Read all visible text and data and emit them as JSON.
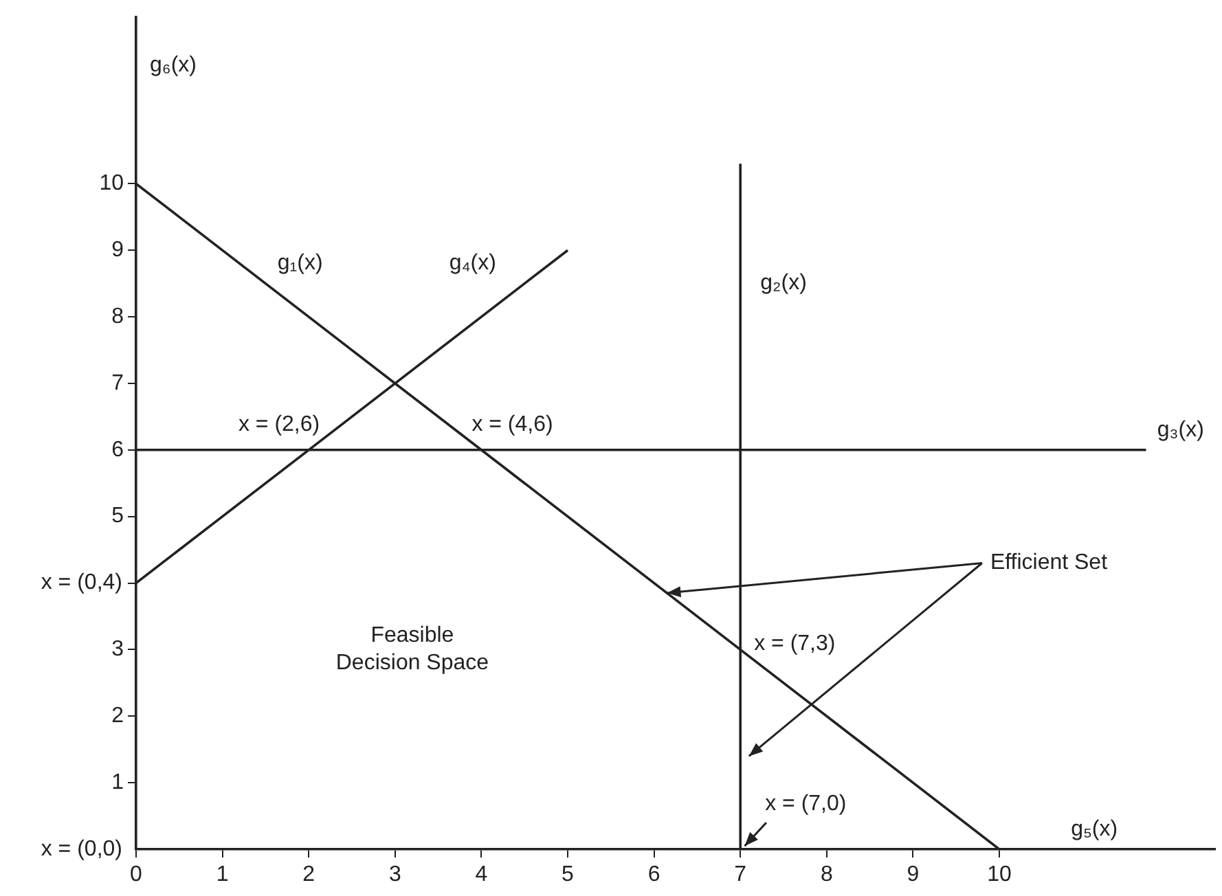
{
  "chart_data": {
    "type": "line",
    "ylabel": "g₆(x)",
    "xlim": [
      0,
      12.5
    ],
    "xticks": [
      0,
      1,
      2,
      3,
      4,
      5,
      6,
      7,
      8,
      9,
      10
    ],
    "ylim": [
      0,
      12.5
    ],
    "yticks": [
      1,
      2,
      3,
      {
        "value": 4,
        "label": null
      },
      5,
      6,
      7,
      8,
      9,
      10
    ],
    "grid": false,
    "legend": false,
    "marker": "none",
    "line_style": "solid",
    "series": [
      {
        "color": "#222222",
        "x": [
          0,
          10
        ],
        "values": [
          10,
          0
        ]
      },
      {
        "color": "#222222",
        "x": [
          7,
          7
        ],
        "values": [
          0,
          10.3
        ]
      },
      {
        "color": "#222222",
        "x": [
          0,
          11.7
        ],
        "values": [
          6,
          6
        ]
      },
      {
        "color": "#222222",
        "x": [
          0,
          5
        ],
        "values": [
          4,
          9
        ]
      }
    ],
    "annotations": [
      {
        "text": "x = (2,6)",
        "x": 2,
        "y": 6
      },
      {
        "text": "x = (4,6)",
        "x": 4,
        "y": 6
      },
      {
        "text": "x = (0,4)",
        "x": 0,
        "y": 4
      },
      {
        "text": "x = (7,3)",
        "x": 7,
        "y": 3
      },
      {
        "text": "x = (7,0)",
        "x": 7,
        "y": 0
      },
      {
        "text": "Efficient Set",
        "x": 6.15,
        "y": 3.85
      },
      "x = (0,0)",
      "g₁(x)",
      "g₄(x)",
      "g₂(x)",
      "g₃(x)",
      "g₅(x)",
      "Feasible Decision Space"
    ]
  }
}
